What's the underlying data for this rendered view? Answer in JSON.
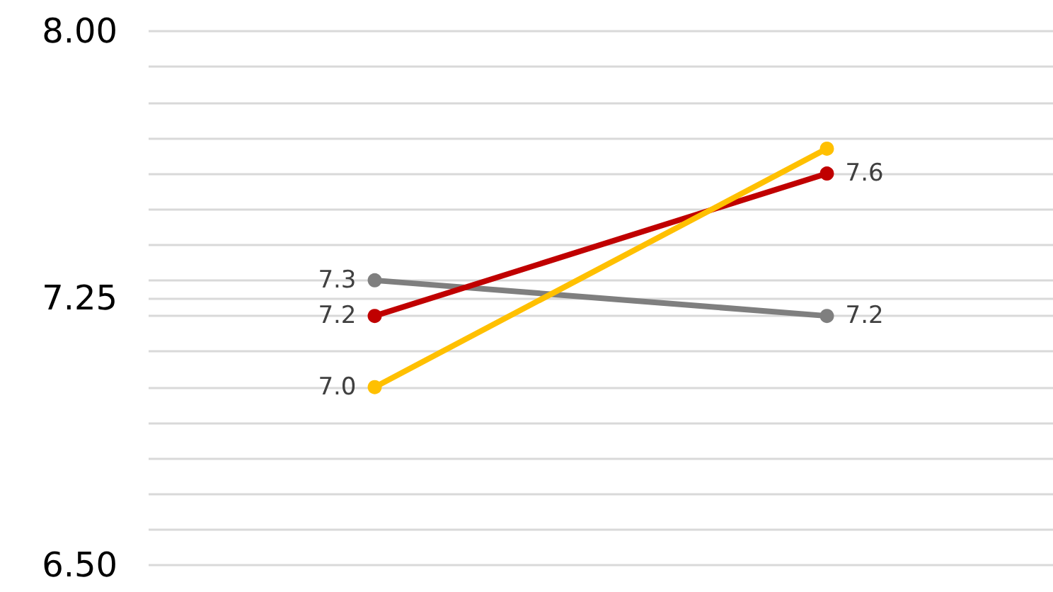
{
  "chart_data": {
    "type": "line",
    "categories": [
      null,
      null
    ],
    "series": [
      {
        "color": "#7f7f7f",
        "values": [
          7.3,
          7.2
        ],
        "value_labels": [
          "7.3",
          "7.2"
        ]
      },
      {
        "color": "#c00000",
        "values": [
          7.2,
          7.6
        ],
        "value_labels": [
          "7.2",
          "7.6"
        ]
      },
      {
        "color": "#ffc000",
        "values": [
          7.0,
          7.67
        ],
        "value_labels": [
          "7.0",
          null
        ]
      }
    ],
    "ylim": [
      6.5,
      8.0
    ],
    "yticks": [
      {
        "value": 6.5,
        "label": "6.50"
      },
      {
        "value": 6.6,
        "label": null
      },
      {
        "value": 6.7,
        "label": null
      },
      {
        "value": 6.8,
        "label": null
      },
      {
        "value": 6.9,
        "label": null
      },
      {
        "value": 7.0,
        "label": null
      },
      {
        "value": 7.1,
        "label": null
      },
      {
        "value": 7.2,
        "label": null
      },
      {
        "value": 7.25,
        "label": "7.25"
      },
      {
        "value": 7.3,
        "label": null
      },
      {
        "value": 7.4,
        "label": null
      },
      {
        "value": 7.5,
        "label": null
      },
      {
        "value": 7.6,
        "label": null
      },
      {
        "value": 7.7,
        "label": null
      },
      {
        "value": 7.8,
        "label": null
      },
      {
        "value": 7.9,
        "label": null
      },
      {
        "value": 8.0,
        "label": "8.00"
      }
    ],
    "grid": "y",
    "marker": "circle",
    "line_style": "solid"
  }
}
